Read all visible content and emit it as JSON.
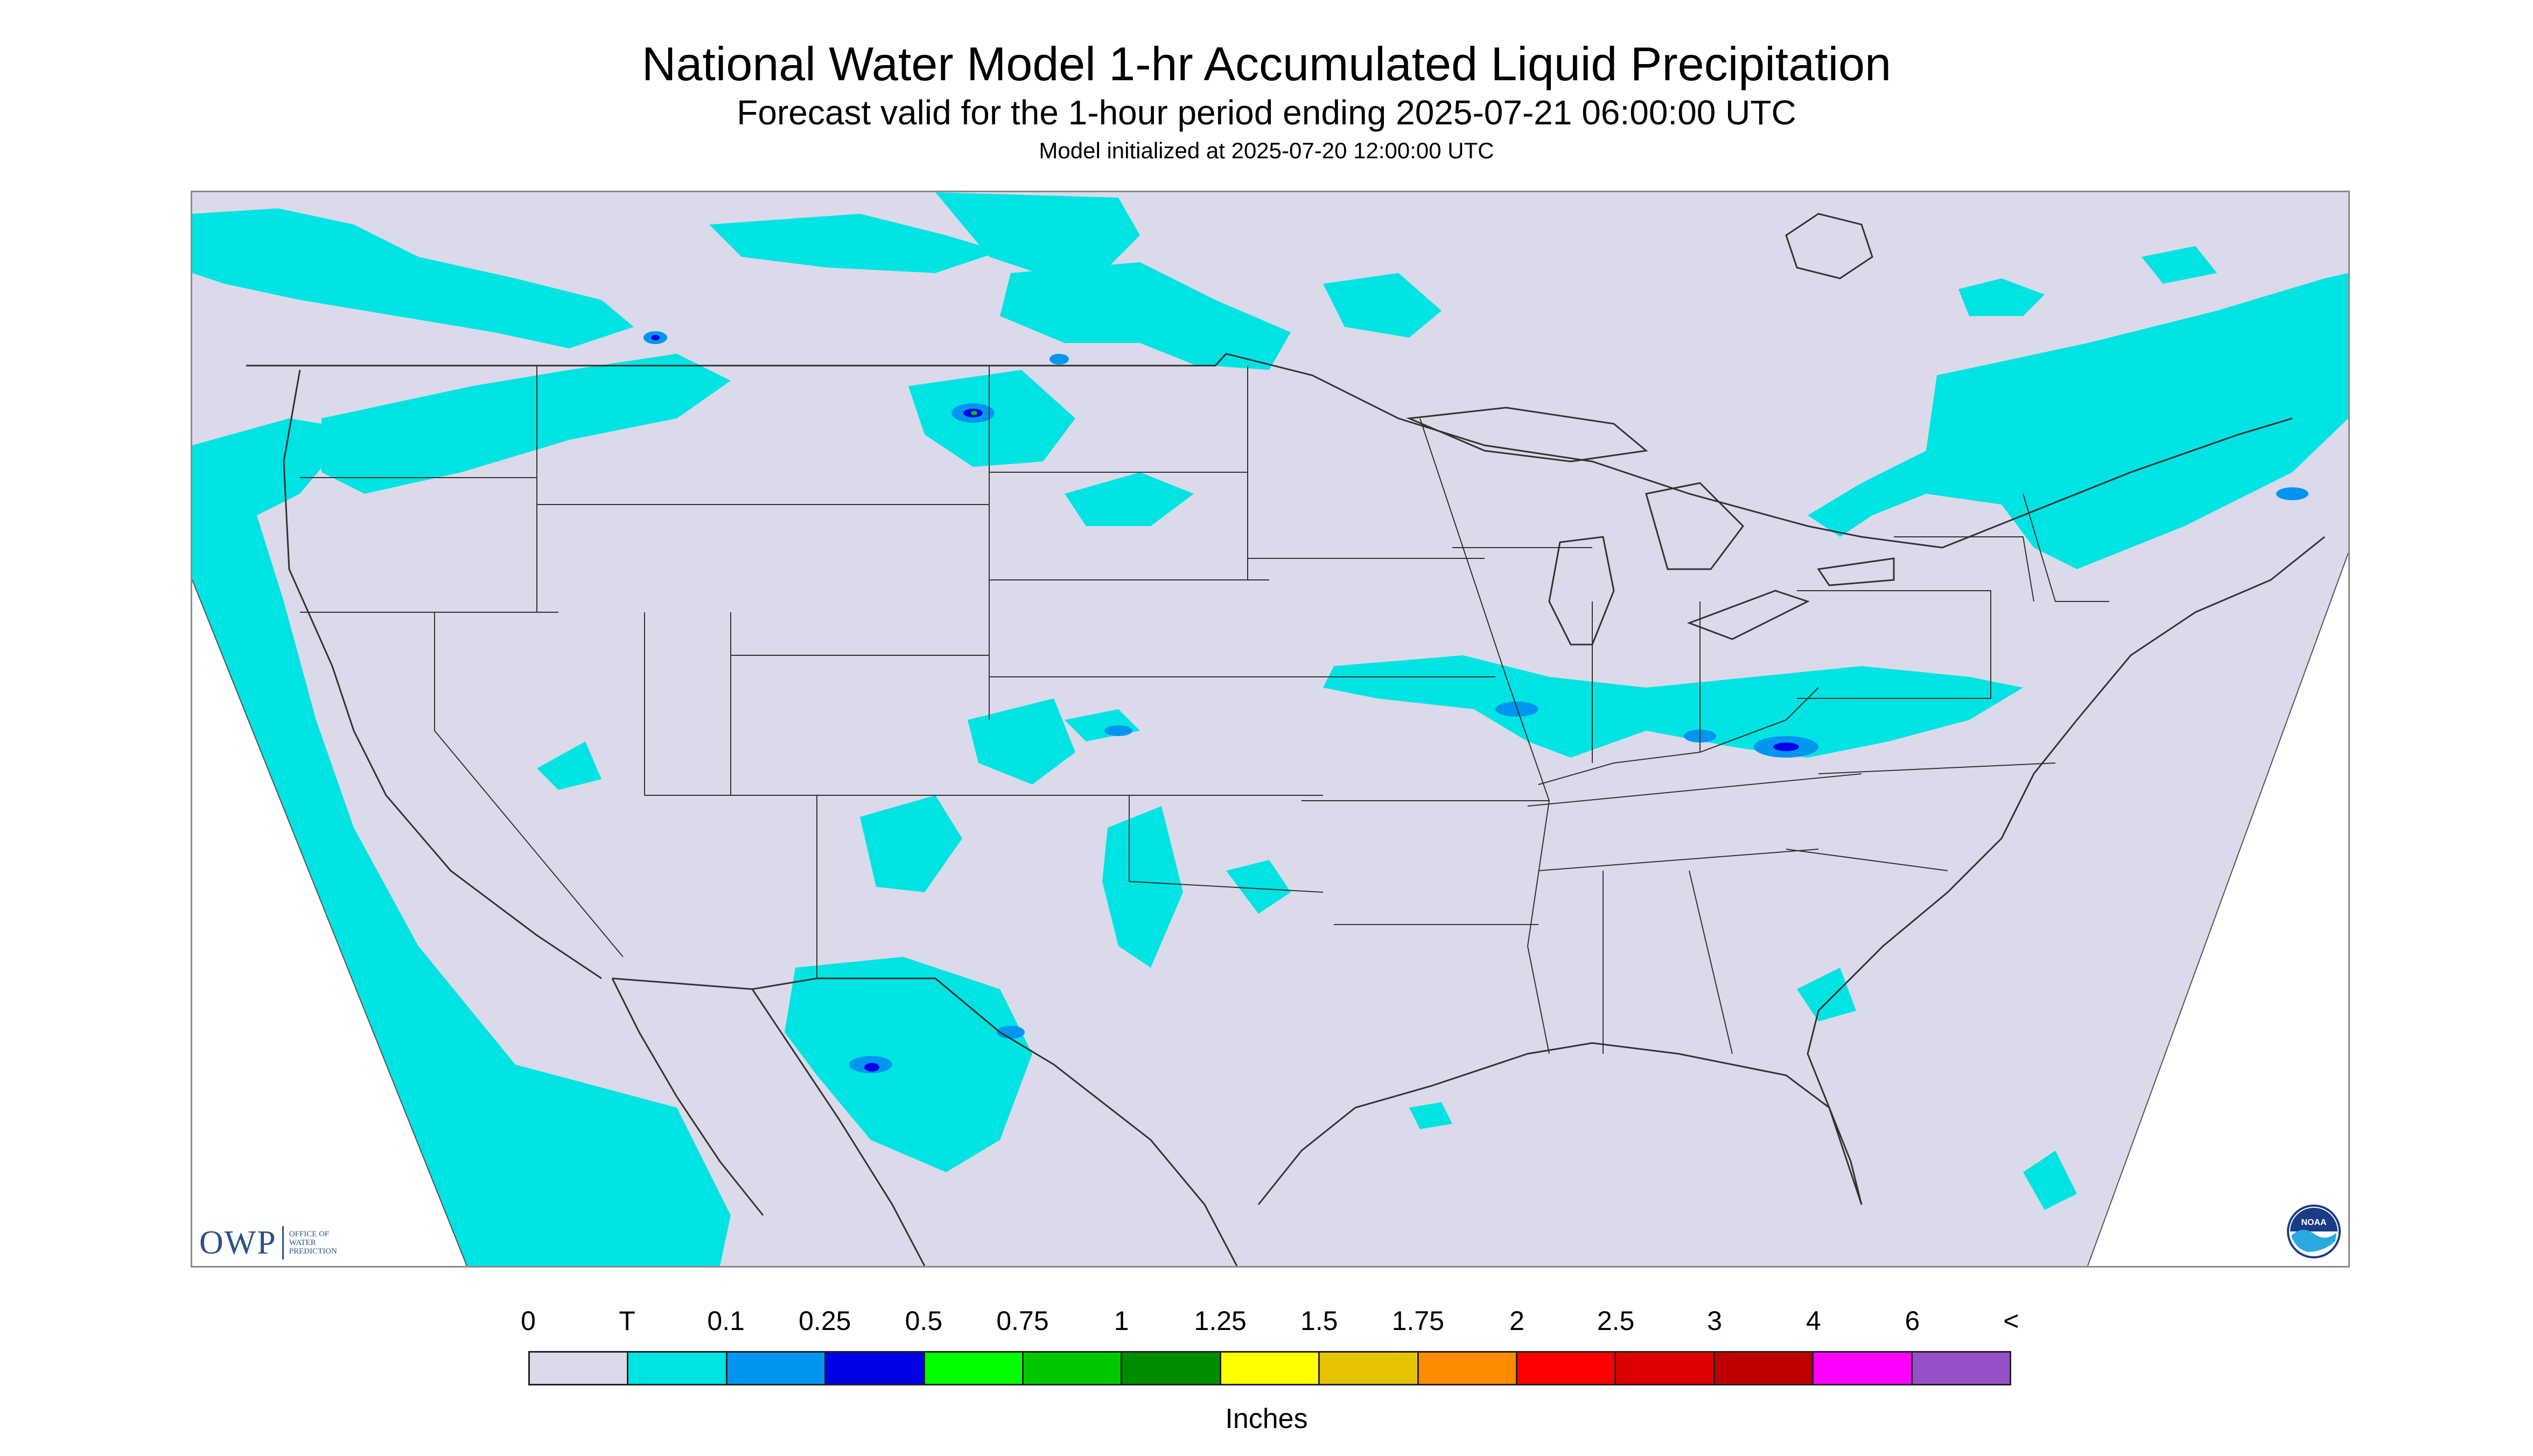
{
  "header": {
    "title": "National Water Model 1-hr Accumulated Liquid Precipitation",
    "subtitle": "Forecast valid for the 1-hour period ending 2025-07-21 06:00:00 UTC",
    "init_line": "Model initialized at 2025-07-20 12:00:00 UTC"
  },
  "map": {
    "background_color": "#dadaea",
    "outside_domain_color": "#ffffff",
    "line_color": "#333333",
    "precip_colors": {
      "trace": "#00e3e3",
      "light": "#0096f0",
      "moderate": "#0000e6",
      "heavy": "#00c000"
    }
  },
  "logos": {
    "owp_mark": "OWP",
    "owp_text": "OFFICE OF WATER PREDICTION",
    "noaa_mark": "NOAA"
  },
  "legend": {
    "labels": [
      "0",
      "T",
      "0.1",
      "0.25",
      "0.5",
      "0.75",
      "1",
      "1.25",
      "1.5",
      "1.75",
      "2",
      "2.5",
      "3",
      "4",
      "6",
      "<"
    ],
    "colors": [
      "#dadaea",
      "#00e3e3",
      "#0096f0",
      "#0000e6",
      "#00ff00",
      "#00c800",
      "#008c00",
      "#ffff00",
      "#e6c300",
      "#ff8c00",
      "#ff0000",
      "#dc0000",
      "#be0000",
      "#ff00ff",
      "#9650c8"
    ],
    "units": "Inches"
  }
}
